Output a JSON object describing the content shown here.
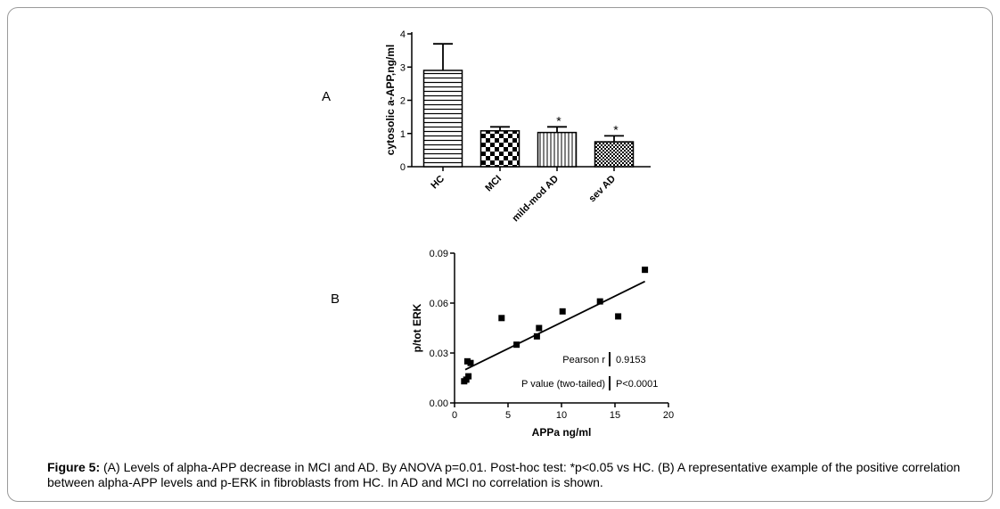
{
  "figure": {
    "panel_a_label": "A",
    "panel_b_label": "B",
    "caption_bold": "Figure 5:",
    "caption_text": " (A) Levels of alpha-APP decrease in MCI and AD. By ANOVA p=0.01. Post-hoc test: *p<0.05 vs HC. (B) A representative example of the positive correlation between alpha-APP levels and p-ERK in fibroblasts from HC. In AD and MCI no correlation is shown."
  },
  "chart_data": [
    {
      "type": "bar",
      "ylabel": "cytosolic a-APP,ng/ml",
      "ylim": [
        0,
        4
      ],
      "yticks": [
        "0",
        "1",
        "2",
        "3",
        "4"
      ],
      "categories": [
        "HC",
        "MCI",
        "mild-mod AD",
        "sev AD"
      ],
      "values": [
        2.9,
        1.08,
        1.03,
        0.75
      ],
      "errors": [
        0.8,
        0.12,
        0.17,
        0.18
      ],
      "significance": [
        "",
        "",
        "*",
        "*"
      ],
      "patterns": [
        "horizontal-stripes",
        "checkerboard",
        "vertical-stripes",
        "fine-checkerboard"
      ]
    },
    {
      "type": "scatter",
      "xlabel": "APPa ng/ml",
      "ylabel": "p/tot ERK",
      "xlim": [
        0,
        20
      ],
      "ylim": [
        0,
        0.09
      ],
      "xticks": [
        "0",
        "5",
        "10",
        "15",
        "20"
      ],
      "yticks": [
        "0.00",
        "0.03",
        "0.06",
        "0.09"
      ],
      "points": [
        {
          "x": 0.9,
          "y": 0.013
        },
        {
          "x": 1.1,
          "y": 0.014
        },
        {
          "x": 1.3,
          "y": 0.016
        },
        {
          "x": 1.2,
          "y": 0.025
        },
        {
          "x": 1.5,
          "y": 0.024
        },
        {
          "x": 4.4,
          "y": 0.051
        },
        {
          "x": 5.8,
          "y": 0.035
        },
        {
          "x": 7.7,
          "y": 0.04
        },
        {
          "x": 7.9,
          "y": 0.045
        },
        {
          "x": 10.1,
          "y": 0.055
        },
        {
          "x": 13.6,
          "y": 0.061
        },
        {
          "x": 15.3,
          "y": 0.052
        },
        {
          "x": 17.8,
          "y": 0.08
        }
      ],
      "fit_line": {
        "x": [
          1.0,
          17.8
        ],
        "y": [
          0.02,
          0.073
        ]
      },
      "stats": [
        {
          "label": "Pearson r",
          "value": "0.9153"
        },
        {
          "label": "P value (two-tailed)",
          "value": "P<0.0001"
        }
      ]
    }
  ]
}
